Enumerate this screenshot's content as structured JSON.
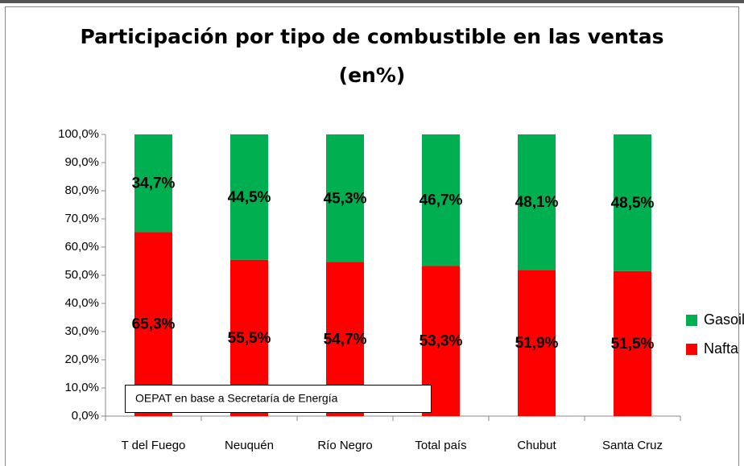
{
  "chart_data": {
    "type": "stacked_bar",
    "title": "Participación por tipo de combustible en las ventas",
    "subtitle": "(en%)",
    "annotation": "OEPAT en base a Secretaría de Energía",
    "categories": [
      "T del Fuego",
      "Neuquén",
      "Río Negro",
      "Total país",
      "Chubut",
      "Santa Cruz"
    ],
    "series": [
      {
        "name": "Nafta",
        "color": "#ff0000",
        "values": [
          65.3,
          55.5,
          54.7,
          53.3,
          51.9,
          51.5
        ],
        "value_labels": [
          "65,3%",
          "55,5%",
          "54,7%",
          "53,3%",
          "51,9%",
          "51,5%"
        ]
      },
      {
        "name": "Gasoil",
        "color": "#00b050",
        "values": [
          34.7,
          44.5,
          45.3,
          46.7,
          48.1,
          48.5
        ],
        "value_labels": [
          "34,7%",
          "44,5%",
          "45,3%",
          "46,7%",
          "48,1%",
          "48,5%"
        ]
      }
    ],
    "ylim": [
      0,
      100
    ],
    "yticks": [
      {
        "value": 0,
        "label": "0,0%"
      },
      {
        "value": 10,
        "label": "10,0%"
      },
      {
        "value": 20,
        "label": "20,0%"
      },
      {
        "value": 30,
        "label": "30,0%"
      },
      {
        "value": 40,
        "label": "40,0%"
      },
      {
        "value": 50,
        "label": "50,0%"
      },
      {
        "value": 60,
        "label": "60,0%"
      },
      {
        "value": 70,
        "label": "70,0%"
      },
      {
        "value": 80,
        "label": "80,0%"
      },
      {
        "value": 90,
        "label": "90,0%"
      },
      {
        "value": 100,
        "label": "100,0%"
      }
    ],
    "grid": false,
    "legend": "right"
  }
}
